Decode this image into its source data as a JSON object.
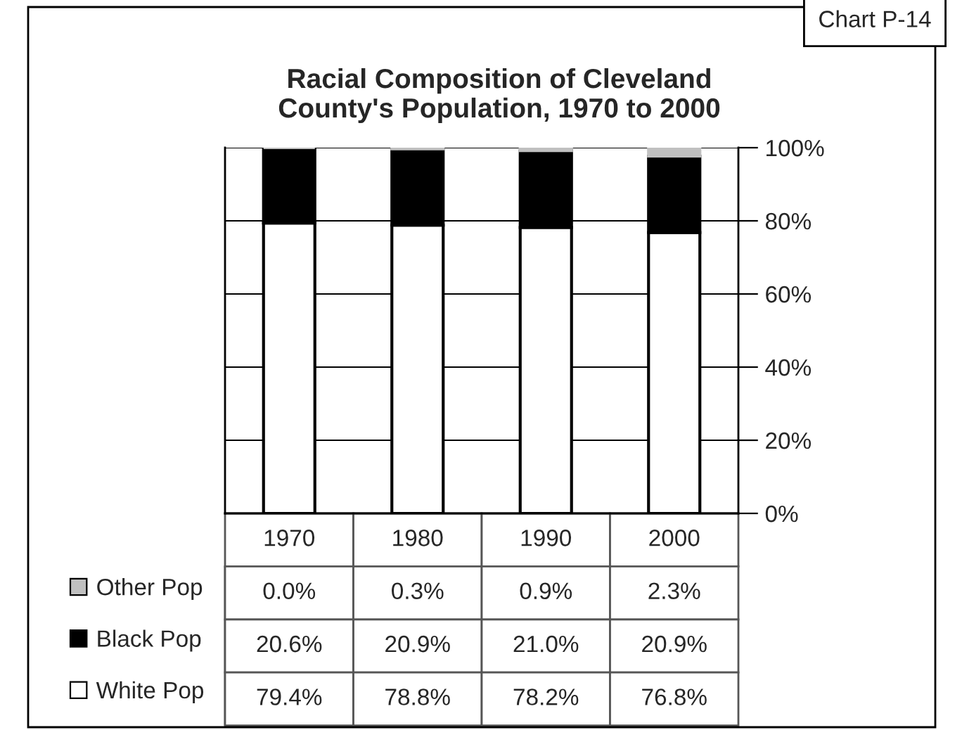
{
  "chart_data": {
    "type": "bar",
    "stacked": true,
    "title": "Racial Composition of Cleveland\nCounty's Population, 1970 to 2000",
    "annotations": [
      "Chart P-14"
    ],
    "categories": [
      "1970",
      "1980",
      "1990",
      "2000"
    ],
    "series": [
      {
        "name": "White Pop",
        "color": "#ffffff",
        "values": [
          79.4,
          78.8,
          78.2,
          76.8
        ],
        "value_labels": [
          "79.4%",
          "78.8%",
          "78.2%",
          "76.8%"
        ]
      },
      {
        "name": "Black Pop",
        "color": "#000000",
        "values": [
          20.6,
          20.9,
          21.0,
          20.9
        ],
        "value_labels": [
          "20.6%",
          "20.9%",
          "21.0%",
          "20.9%"
        ]
      },
      {
        "name": "Other Pop",
        "color": "#c0c0c0",
        "values": [
          0.0,
          0.3,
          0.9,
          2.3
        ],
        "value_labels": [
          "0.0%",
          "0.3%",
          "0.9%",
          "2.3%"
        ]
      }
    ],
    "ylim": [
      0,
      100
    ],
    "yticks": [
      {
        "value": 0,
        "label": "0%"
      },
      {
        "value": 20,
        "label": "20%"
      },
      {
        "value": 40,
        "label": "40%"
      },
      {
        "value": 60,
        "label": "60%"
      },
      {
        "value": 80,
        "label": "80%"
      },
      {
        "value": 100,
        "label": "100%"
      }
    ],
    "grid": "y",
    "legend": "bottom left"
  }
}
